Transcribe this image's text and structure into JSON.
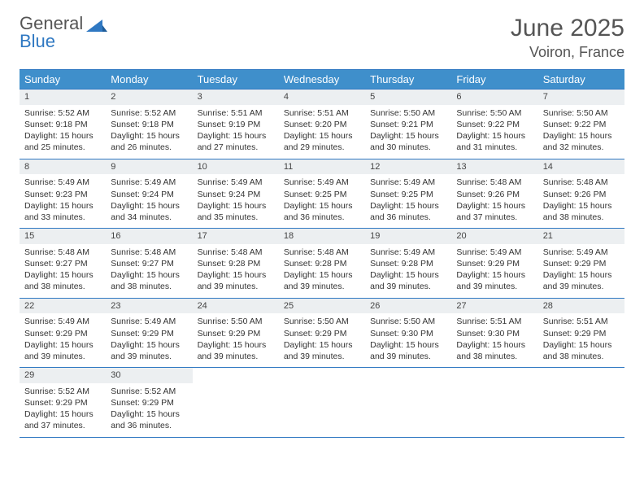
{
  "logo": {
    "word1": "General",
    "word2": "Blue"
  },
  "title": "June 2025",
  "location": "Voiron, France",
  "colors": {
    "header_bg": "#3f8fcb",
    "header_fg": "#ffffff",
    "border": "#2f78c2",
    "daynum_bg": "#eceff1",
    "logo_gray": "#555555",
    "logo_blue": "#2f78c2",
    "text": "#333333"
  },
  "typography": {
    "title_fontsize": 30,
    "location_fontsize": 18,
    "dow_fontsize": 13,
    "cell_fontsize": 10.5
  },
  "dow": [
    "Sunday",
    "Monday",
    "Tuesday",
    "Wednesday",
    "Thursday",
    "Friday",
    "Saturday"
  ],
  "weeks": [
    [
      {
        "num": "1",
        "sunrise": "5:52 AM",
        "sunset": "9:18 PM",
        "dl": "15 hours and 25 minutes."
      },
      {
        "num": "2",
        "sunrise": "5:52 AM",
        "sunset": "9:18 PM",
        "dl": "15 hours and 26 minutes."
      },
      {
        "num": "3",
        "sunrise": "5:51 AM",
        "sunset": "9:19 PM",
        "dl": "15 hours and 27 minutes."
      },
      {
        "num": "4",
        "sunrise": "5:51 AM",
        "sunset": "9:20 PM",
        "dl": "15 hours and 29 minutes."
      },
      {
        "num": "5",
        "sunrise": "5:50 AM",
        "sunset": "9:21 PM",
        "dl": "15 hours and 30 minutes."
      },
      {
        "num": "6",
        "sunrise": "5:50 AM",
        "sunset": "9:22 PM",
        "dl": "15 hours and 31 minutes."
      },
      {
        "num": "7",
        "sunrise": "5:50 AM",
        "sunset": "9:22 PM",
        "dl": "15 hours and 32 minutes."
      }
    ],
    [
      {
        "num": "8",
        "sunrise": "5:49 AM",
        "sunset": "9:23 PM",
        "dl": "15 hours and 33 minutes."
      },
      {
        "num": "9",
        "sunrise": "5:49 AM",
        "sunset": "9:24 PM",
        "dl": "15 hours and 34 minutes."
      },
      {
        "num": "10",
        "sunrise": "5:49 AM",
        "sunset": "9:24 PM",
        "dl": "15 hours and 35 minutes."
      },
      {
        "num": "11",
        "sunrise": "5:49 AM",
        "sunset": "9:25 PM",
        "dl": "15 hours and 36 minutes."
      },
      {
        "num": "12",
        "sunrise": "5:49 AM",
        "sunset": "9:25 PM",
        "dl": "15 hours and 36 minutes."
      },
      {
        "num": "13",
        "sunrise": "5:48 AM",
        "sunset": "9:26 PM",
        "dl": "15 hours and 37 minutes."
      },
      {
        "num": "14",
        "sunrise": "5:48 AM",
        "sunset": "9:26 PM",
        "dl": "15 hours and 38 minutes."
      }
    ],
    [
      {
        "num": "15",
        "sunrise": "5:48 AM",
        "sunset": "9:27 PM",
        "dl": "15 hours and 38 minutes."
      },
      {
        "num": "16",
        "sunrise": "5:48 AM",
        "sunset": "9:27 PM",
        "dl": "15 hours and 38 minutes."
      },
      {
        "num": "17",
        "sunrise": "5:48 AM",
        "sunset": "9:28 PM",
        "dl": "15 hours and 39 minutes."
      },
      {
        "num": "18",
        "sunrise": "5:48 AM",
        "sunset": "9:28 PM",
        "dl": "15 hours and 39 minutes."
      },
      {
        "num": "19",
        "sunrise": "5:49 AM",
        "sunset": "9:28 PM",
        "dl": "15 hours and 39 minutes."
      },
      {
        "num": "20",
        "sunrise": "5:49 AM",
        "sunset": "9:29 PM",
        "dl": "15 hours and 39 minutes."
      },
      {
        "num": "21",
        "sunrise": "5:49 AM",
        "sunset": "9:29 PM",
        "dl": "15 hours and 39 minutes."
      }
    ],
    [
      {
        "num": "22",
        "sunrise": "5:49 AM",
        "sunset": "9:29 PM",
        "dl": "15 hours and 39 minutes."
      },
      {
        "num": "23",
        "sunrise": "5:49 AM",
        "sunset": "9:29 PM",
        "dl": "15 hours and 39 minutes."
      },
      {
        "num": "24",
        "sunrise": "5:50 AM",
        "sunset": "9:29 PM",
        "dl": "15 hours and 39 minutes."
      },
      {
        "num": "25",
        "sunrise": "5:50 AM",
        "sunset": "9:29 PM",
        "dl": "15 hours and 39 minutes."
      },
      {
        "num": "26",
        "sunrise": "5:50 AM",
        "sunset": "9:30 PM",
        "dl": "15 hours and 39 minutes."
      },
      {
        "num": "27",
        "sunrise": "5:51 AM",
        "sunset": "9:30 PM",
        "dl": "15 hours and 38 minutes."
      },
      {
        "num": "28",
        "sunrise": "5:51 AM",
        "sunset": "9:29 PM",
        "dl": "15 hours and 38 minutes."
      }
    ],
    [
      {
        "num": "29",
        "sunrise": "5:52 AM",
        "sunset": "9:29 PM",
        "dl": "15 hours and 37 minutes."
      },
      {
        "num": "30",
        "sunrise": "5:52 AM",
        "sunset": "9:29 PM",
        "dl": "15 hours and 36 minutes."
      },
      null,
      null,
      null,
      null,
      null
    ]
  ],
  "labels": {
    "sunrise": "Sunrise: ",
    "sunset": "Sunset: ",
    "daylight": "Daylight: "
  }
}
